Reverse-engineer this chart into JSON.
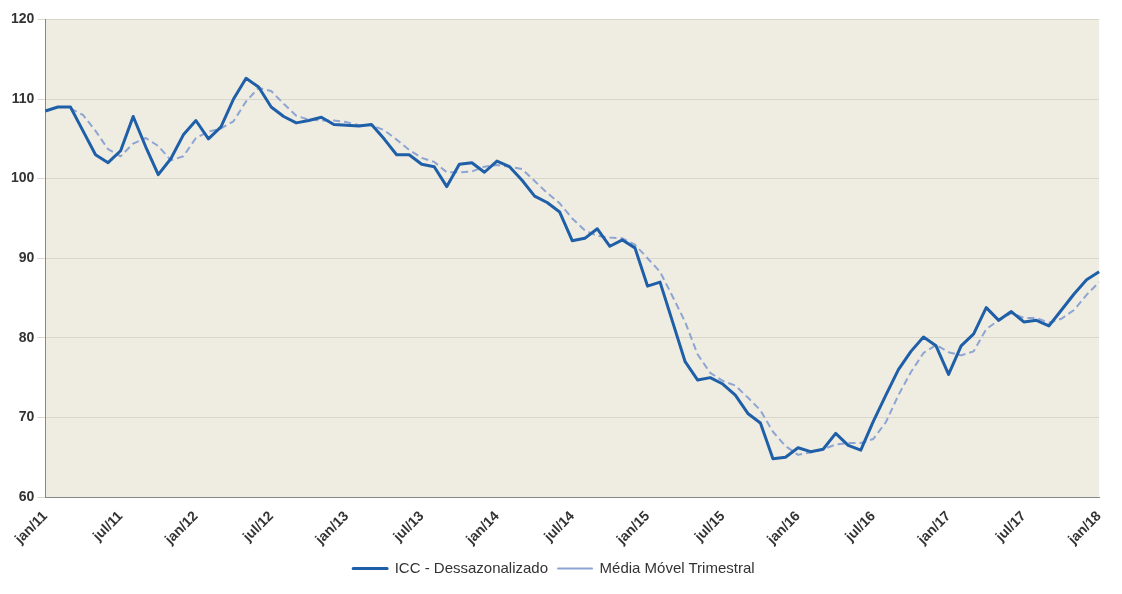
{
  "chart_data": {
    "type": "line",
    "categories": [
      "jan/11",
      null,
      null,
      null,
      null,
      null,
      "jul/11",
      null,
      null,
      null,
      null,
      null,
      "jan/12",
      null,
      null,
      null,
      null,
      null,
      "jul/12",
      null,
      null,
      null,
      null,
      null,
      "jan/13",
      null,
      null,
      null,
      null,
      null,
      "jul/13",
      null,
      null,
      null,
      null,
      null,
      "jan/14",
      null,
      null,
      null,
      null,
      null,
      "jul/14",
      null,
      null,
      null,
      null,
      null,
      "jan/15",
      null,
      null,
      null,
      null,
      null,
      "jul/15",
      null,
      null,
      null,
      null,
      null,
      "jan/16",
      null,
      null,
      null,
      null,
      null,
      "jul/16",
      null,
      null,
      null,
      null,
      null,
      "jan/17",
      null,
      null,
      null,
      null,
      null,
      "jul/17",
      null,
      null,
      null,
      null,
      null,
      "jan/18"
    ],
    "series": [
      {
        "name": "ICC - Dessazonalizado",
        "color": "#1f5fa8",
        "line_style": "solid",
        "values": [
          108.5,
          109,
          109,
          106,
          103,
          102,
          103.5,
          107.8,
          104,
          100.5,
          102.5,
          105.5,
          107.3,
          105,
          106.5,
          110,
          112.6,
          111.5,
          109,
          107.8,
          107,
          107.3,
          107.7,
          106.8,
          106.7,
          106.6,
          106.8,
          105,
          103,
          103,
          101.8,
          101.5,
          99,
          101.8,
          102,
          100.8,
          102.2,
          101.5,
          99.8,
          97.8,
          97,
          95.8,
          92.2,
          92.5,
          93.7,
          91.5,
          92.3,
          91.3,
          86.5,
          87,
          82,
          77,
          74.7,
          75,
          74.2,
          72.8,
          70.5,
          69.3,
          64.8,
          65,
          66.2,
          65.7,
          66,
          68,
          66.5,
          65.9,
          69.5,
          72.8,
          76,
          78.3,
          80.1,
          79,
          75.4,
          79,
          80.5,
          83.8,
          82.2,
          83.3,
          82,
          82.2,
          81.5,
          83.5,
          85.5,
          87.3,
          88.3
        ]
      },
      {
        "name": "Média Móvel Trimestral",
        "color": "#8ea4d2",
        "line_style": "dashed",
        "values": [
          null,
          null,
          108.8,
          108,
          106,
          103.7,
          102.8,
          104.4,
          105.1,
          104.1,
          102.3,
          102.8,
          105.1,
          105.9,
          106.3,
          107.2,
          109.7,
          111.4,
          111,
          109.4,
          107.9,
          107.4,
          107.3,
          107.3,
          107.1,
          106.7,
          106.7,
          106.1,
          104.9,
          103.6,
          102.6,
          102.1,
          100.8,
          100.8,
          100.9,
          101.5,
          101.7,
          101.5,
          101.2,
          99.7,
          98.2,
          96.9,
          95,
          93.5,
          92.8,
          92.6,
          92.5,
          91.7,
          90,
          88.3,
          85.2,
          82,
          77.9,
          75.6,
          74.6,
          74,
          72.5,
          70.9,
          68.2,
          66.4,
          65.3,
          65.6,
          66,
          66.6,
          66.8,
          66.8,
          67.3,
          69.4,
          72.8,
          75.7,
          78.1,
          79.1,
          78.2,
          77.8,
          78.3,
          81.1,
          82.2,
          83.1,
          82.5,
          82.5,
          81.9,
          82.4,
          83.5,
          85.4,
          87
        ]
      }
    ],
    "ylim": [
      60,
      120
    ],
    "yticks": [
      60,
      70,
      80,
      90,
      100,
      110,
      120
    ],
    "grid": "y",
    "legend": "bottom",
    "marker": "none"
  }
}
